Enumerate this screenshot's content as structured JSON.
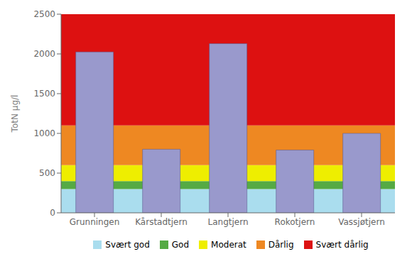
{
  "chart_data": {
    "type": "bar",
    "categories": [
      "Grunningen",
      "Kårstadtjern",
      "Langtjern",
      "Rokotjern",
      "Vassjøtjern"
    ],
    "values": [
      2025,
      800,
      2130,
      790,
      1000
    ],
    "color": "#9999cc",
    "ylabel": "TotN µg/l",
    "ylim": [
      0,
      2500
    ],
    "yticks": [
      0,
      500,
      1000,
      1500,
      2000,
      2500
    ],
    "grid": false,
    "bands": [
      {
        "name": "Svært god",
        "color": "#aaddee",
        "ymin": 0,
        "ymax": 300
      },
      {
        "name": "God",
        "color": "#55aa44",
        "ymin": 300,
        "ymax": 400
      },
      {
        "name": "Moderat",
        "color": "#eeee00",
        "ymin": 400,
        "ymax": 600
      },
      {
        "name": "Dårlig",
        "color": "#ee8822",
        "ymin": 600,
        "ymax": 1100
      },
      {
        "name": "Svært dårlig",
        "color": "#dd1111",
        "ymin": 1100,
        "ymax": 2500
      }
    ]
  }
}
